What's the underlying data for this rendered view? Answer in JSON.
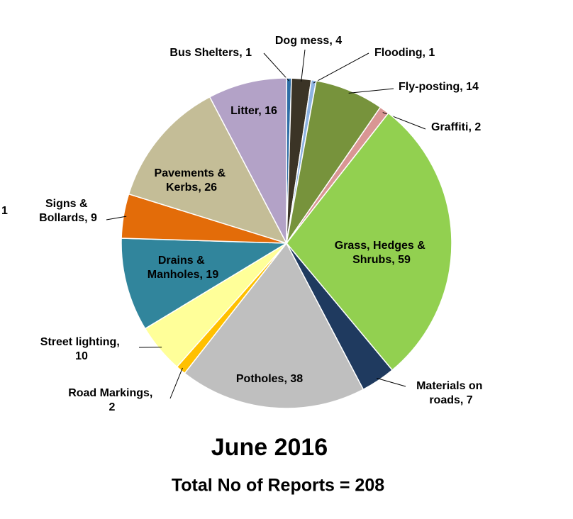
{
  "chart_data": {
    "type": "pie",
    "title": "June 2016",
    "subtitle": "Total No of Reports = 208",
    "annotations": [
      "1"
    ],
    "categories": [
      "Bus Shelters",
      "Dog mess",
      "Flooding",
      "Fly-posting",
      "Graffiti",
      "Grass, Hedges & Shrubs",
      "Materials on roads",
      "Potholes",
      "Road Markings",
      "Street lighting",
      "Drains & Manholes",
      "Signs & Bollards",
      "Pavements & Kerbs",
      "Litter"
    ],
    "values": [
      1,
      4,
      1,
      14,
      2,
      59,
      7,
      38,
      2,
      10,
      19,
      9,
      26,
      16
    ],
    "value_labels": [
      "Bus Shelters, 1",
      "Dog mess, 4",
      "Flooding, 1",
      "Fly-posting, 14",
      "Graffiti, 2",
      "Grass, Hedges & Shrubs, 59",
      "Materials on roads, 7",
      "Potholes, 38",
      "Road Markings, 2",
      "Street lighting, 10",
      "Drains & Manholes, 19",
      "Signs & Bollards, 9",
      "Pavements & Kerbs, 26",
      "Litter, 16"
    ],
    "colors": [
      "#2e6ea6",
      "#3b3426",
      "#8db3e2",
      "#77933c",
      "#d99694",
      "#92d050",
      "#1f3a5f",
      "#bfbfbf",
      "#ffc000",
      "#ffff99",
      "#31859c",
      "#e36c09",
      "#c4bd97",
      "#b3a2c7"
    ]
  }
}
